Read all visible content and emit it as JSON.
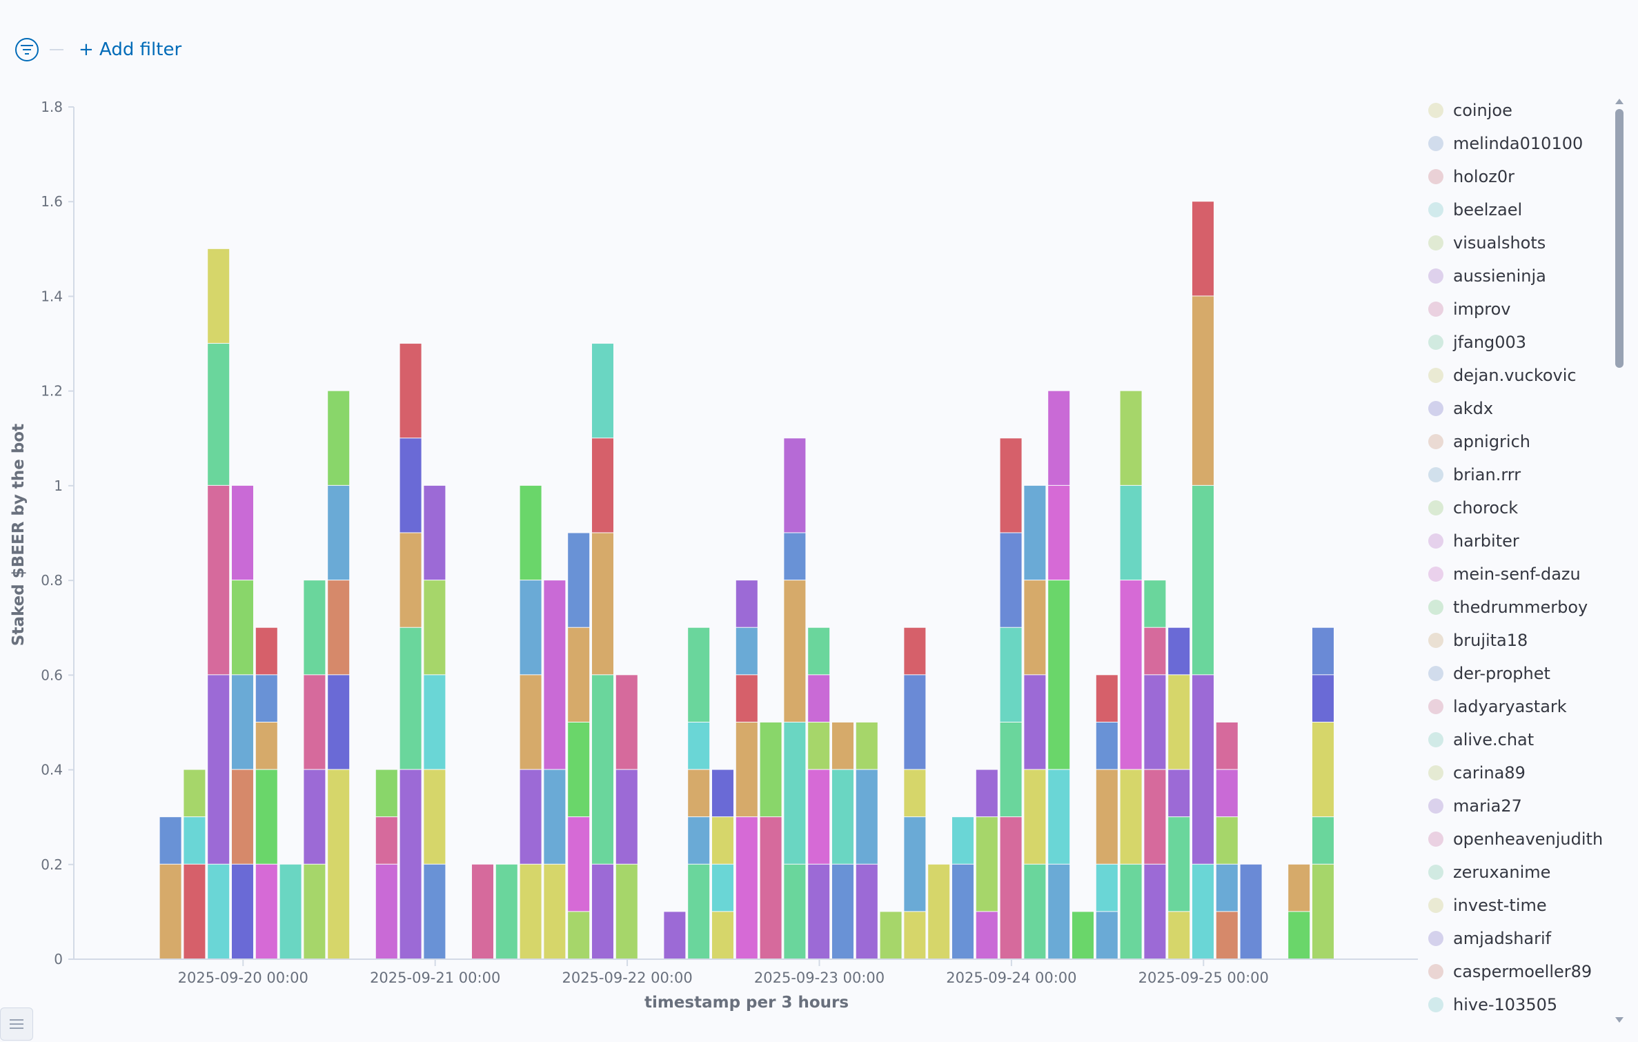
{
  "toolbar": {
    "add_filter_label": "+ Add filter"
  },
  "icons": {
    "filter": "filter-icon",
    "list": "list-icon"
  },
  "chart_data": {
    "type": "bar",
    "stacked": true,
    "xlabel": "timestamp per 3 hours",
    "ylabel": "Staked $BEER by the bot",
    "ylim": [
      0,
      1.8
    ],
    "yticks": [
      0,
      0.2,
      0.4,
      0.6,
      0.8,
      1,
      1.2,
      1.4,
      1.6,
      1.8
    ],
    "xtick_labels": [
      "2025-09-20 00:00",
      "2025-09-21 00:00",
      "2025-09-22 00:00",
      "2025-09-23 00:00",
      "2025-09-24 00:00",
      "2025-09-25 00:00"
    ],
    "bucket_hours": 3,
    "x_start": "2025-09-19 06:00",
    "bars": [
      {
        "t": "2025-09-19 12:00",
        "segs": [
          [
            0.2,
            "#d6aa6a"
          ],
          [
            0.1,
            "#6992d6"
          ]
        ]
      },
      {
        "t": "2025-09-19 15:00",
        "segs": [
          [
            0.2,
            "#d6606a"
          ],
          [
            0.1,
            "#6ad6d6"
          ],
          [
            0.1,
            "#a6d66a"
          ]
        ]
      },
      {
        "t": "2025-09-19 18:00",
        "segs": [
          [
            0.2,
            "#6ad6d6"
          ],
          [
            0.4,
            "#9c6ad6"
          ],
          [
            0.4,
            "#d66a9c"
          ],
          [
            0.3,
            "#6ad69c"
          ],
          [
            0.2,
            "#d6d66a"
          ]
        ]
      },
      {
        "t": "2025-09-19 21:00",
        "segs": [
          [
            0.2,
            "#6a6ad6"
          ],
          [
            0.2,
            "#d6896a"
          ],
          [
            0.2,
            "#6aaad6"
          ],
          [
            0.2,
            "#89d66a"
          ],
          [
            0.2,
            "#c96ad6"
          ]
        ]
      },
      {
        "t": "2025-09-20 00:00",
        "segs": [
          [
            0.2,
            "#d66ad6"
          ],
          [
            0.2,
            "#6ad66a"
          ],
          [
            0.1,
            "#d6aa6a"
          ],
          [
            0.1,
            "#6992d6"
          ],
          [
            0.1,
            "#d6606a"
          ]
        ]
      },
      {
        "t": "2025-09-20 03:00",
        "segs": [
          [
            0.2,
            "#6ad6c2"
          ]
        ]
      },
      {
        "t": "2025-09-20 06:00",
        "segs": [
          [
            0.2,
            "#a6d66a"
          ],
          [
            0.2,
            "#9c6ad6"
          ],
          [
            0.2,
            "#d66a9c"
          ],
          [
            0.2,
            "#6ad69c"
          ]
        ]
      },
      {
        "t": "2025-09-20 09:00",
        "segs": [
          [
            0.4,
            "#d6d66a"
          ],
          [
            0.2,
            "#6a6ad6"
          ],
          [
            0.2,
            "#d6896a"
          ],
          [
            0.2,
            "#6aaad6"
          ],
          [
            0.2,
            "#89d66a"
          ]
        ]
      },
      {
        "t": "2025-09-20 15:00",
        "segs": [
          [
            0.2,
            "#c96ad6"
          ],
          [
            0.1,
            "#d66a9c"
          ],
          [
            0.1,
            "#89d66a"
          ]
        ]
      },
      {
        "t": "2025-09-20 18:00",
        "segs": [
          [
            0.4,
            "#9c6ad6"
          ],
          [
            0.3,
            "#6ad69c"
          ],
          [
            0.2,
            "#d6aa6a"
          ],
          [
            0.2,
            "#6a6ad6"
          ],
          [
            0.2,
            "#d6606a"
          ]
        ]
      },
      {
        "t": "2025-09-20 21:00",
        "segs": [
          [
            0.2,
            "#6992d6"
          ],
          [
            0.2,
            "#d6d66a"
          ],
          [
            0.2,
            "#6ad6d6"
          ],
          [
            0.2,
            "#a6d66a"
          ],
          [
            0.2,
            "#9c6ad6"
          ]
        ]
      },
      {
        "t": "2025-09-21 03:00",
        "segs": [
          [
            0.2,
            "#d66a9c"
          ]
        ]
      },
      {
        "t": "2025-09-21 06:00",
        "segs": [
          [
            0.2,
            "#6ad69c"
          ]
        ]
      },
      {
        "t": "2025-09-21 09:00",
        "segs": [
          [
            0.2,
            "#d6d66a"
          ],
          [
            0.2,
            "#9c6ad6"
          ],
          [
            0.2,
            "#d6aa6a"
          ],
          [
            0.2,
            "#6aaad6"
          ],
          [
            0.2,
            "#6ad66a"
          ]
        ]
      },
      {
        "t": "2025-09-21 12:00",
        "segs": [
          [
            0.2,
            "#d6d66a"
          ],
          [
            0.2,
            "#6aaad6"
          ],
          [
            0.4,
            "#c96ad6"
          ]
        ]
      },
      {
        "t": "2025-09-21 15:00",
        "segs": [
          [
            0.1,
            "#a6d66a"
          ],
          [
            0.2,
            "#d66ad6"
          ],
          [
            0.2,
            "#6ad66a"
          ],
          [
            0.2,
            "#d6aa6a"
          ],
          [
            0.2,
            "#6992d6"
          ]
        ]
      },
      {
        "t": "2025-09-21 18:00",
        "segs": [
          [
            0.2,
            "#9c6ad6"
          ],
          [
            0.4,
            "#6ad69c"
          ],
          [
            0.3,
            "#d6aa6a"
          ],
          [
            0.2,
            "#d6606a"
          ],
          [
            0.2,
            "#6ad6c2"
          ]
        ]
      },
      {
        "t": "2025-09-21 21:00",
        "segs": [
          [
            0.2,
            "#a6d66a"
          ],
          [
            0.2,
            "#9c6ad6"
          ],
          [
            0.2,
            "#d66a9c"
          ]
        ]
      },
      {
        "t": "2025-09-22 03:00",
        "segs": [
          [
            0.1,
            "#9c6ad6"
          ]
        ]
      },
      {
        "t": "2025-09-22 06:00",
        "segs": [
          [
            0.2,
            "#6ad69c"
          ],
          [
            0.1,
            "#6aaad6"
          ],
          [
            0.1,
            "#d6aa6a"
          ],
          [
            0.1,
            "#6ad6d6"
          ],
          [
            0.2,
            "#6ad69c"
          ]
        ]
      },
      {
        "t": "2025-09-22 09:00",
        "segs": [
          [
            0.1,
            "#d6d66a"
          ],
          [
            0.1,
            "#6ad6d6"
          ],
          [
            0.1,
            "#d6d66a"
          ],
          [
            0.1,
            "#6a6ad6"
          ]
        ]
      },
      {
        "t": "2025-09-22 12:00",
        "segs": [
          [
            0.3,
            "#d66ad6"
          ],
          [
            0.2,
            "#d6aa6a"
          ],
          [
            0.1,
            "#d6606a"
          ],
          [
            0.1,
            "#6aaad6"
          ],
          [
            0.1,
            "#9c6ad6"
          ]
        ]
      },
      {
        "t": "2025-09-22 15:00",
        "segs": [
          [
            0.3,
            "#d66a9c"
          ],
          [
            0.2,
            "#89d66a"
          ]
        ]
      },
      {
        "t": "2025-09-22 18:00",
        "segs": [
          [
            0.2,
            "#6ad69c"
          ],
          [
            0.3,
            "#6ad6c2"
          ],
          [
            0.3,
            "#d6aa6a"
          ],
          [
            0.1,
            "#6992d6"
          ],
          [
            0.2,
            "#b66ad6"
          ]
        ]
      },
      {
        "t": "2025-09-22 21:00",
        "segs": [
          [
            0.2,
            "#9c6ad6"
          ],
          [
            0.2,
            "#d66ad6"
          ],
          [
            0.1,
            "#a6d66a"
          ],
          [
            0.1,
            "#c96ad6"
          ],
          [
            0.1,
            "#6ad69c"
          ]
        ]
      },
      {
        "t": "2025-09-23 00:00",
        "segs": [
          [
            0.2,
            "#6992d6"
          ],
          [
            0.2,
            "#6ad6c2"
          ],
          [
            0.1,
            "#d6aa6a"
          ]
        ]
      },
      {
        "t": "2025-09-23 03:00",
        "segs": [
          [
            0.2,
            "#9c6ad6"
          ],
          [
            0.2,
            "#6aaad6"
          ],
          [
            0.1,
            "#a6d66a"
          ]
        ]
      },
      {
        "t": "2025-09-23 06:00",
        "segs": [
          [
            0.1,
            "#a6d66a"
          ]
        ]
      },
      {
        "t": "2025-09-23 09:00",
        "segs": [
          [
            0.1,
            "#d6d66a"
          ],
          [
            0.2,
            "#6aaad6"
          ],
          [
            0.1,
            "#d6d66a"
          ],
          [
            0.2,
            "#6a8ad6"
          ],
          [
            0.1,
            "#d6606a"
          ]
        ]
      },
      {
        "t": "2025-09-23 12:00",
        "segs": [
          [
            0.2,
            "#d6d66a"
          ]
        ]
      },
      {
        "t": "2025-09-23 15:00",
        "segs": [
          [
            0.2,
            "#6992d6"
          ],
          [
            0.1,
            "#6ad6d6"
          ]
        ]
      },
      {
        "t": "2025-09-23 18:00",
        "segs": [
          [
            0.1,
            "#c96ad6"
          ],
          [
            0.2,
            "#a6d66a"
          ],
          [
            0.1,
            "#9c6ad6"
          ]
        ]
      },
      {
        "t": "2025-09-23 21:00",
        "segs": [
          [
            0.3,
            "#d66a9c"
          ],
          [
            0.2,
            "#6ad69c"
          ],
          [
            0.2,
            "#6ad6c2"
          ],
          [
            0.2,
            "#6a8ad6"
          ],
          [
            0.2,
            "#d6606a"
          ]
        ]
      },
      {
        "t": "2025-09-24 00:00",
        "segs": [
          [
            0.2,
            "#6ad69c"
          ],
          [
            0.2,
            "#d6d66a"
          ],
          [
            0.2,
            "#9c6ad6"
          ],
          [
            0.2,
            "#d6aa6a"
          ],
          [
            0.2,
            "#6aaad6"
          ]
        ]
      },
      {
        "t": "2025-09-24 03:00",
        "segs": [
          [
            0.2,
            "#6aaad6"
          ],
          [
            0.2,
            "#6ad6d6"
          ],
          [
            0.4,
            "#6ad66a"
          ],
          [
            0.2,
            "#d66ad6"
          ],
          [
            0.2,
            "#c96ad6"
          ]
        ]
      },
      {
        "t": "2025-09-24 06:00",
        "segs": [
          [
            0.1,
            "#6ad66a"
          ]
        ]
      },
      {
        "t": "2025-09-24 09:00",
        "segs": [
          [
            0.1,
            "#6aaad6"
          ],
          [
            0.1,
            "#6ad6d6"
          ],
          [
            0.2,
            "#d6aa6a"
          ],
          [
            0.1,
            "#6992d6"
          ],
          [
            0.1,
            "#d6606a"
          ]
        ]
      },
      {
        "t": "2025-09-24 12:00",
        "segs": [
          [
            0.2,
            "#6ad69c"
          ],
          [
            0.2,
            "#d6d66a"
          ],
          [
            0.4,
            "#d66ad6"
          ],
          [
            0.2,
            "#6ad6c2"
          ],
          [
            0.2,
            "#a6d66a"
          ]
        ]
      },
      {
        "t": "2025-09-24 15:00",
        "segs": [
          [
            0.2,
            "#9c6ad6"
          ],
          [
            0.2,
            "#d66a9c"
          ],
          [
            0.2,
            "#9c6ad6"
          ],
          [
            0.1,
            "#d66a9c"
          ],
          [
            0.1,
            "#6ad69c"
          ]
        ]
      },
      {
        "t": "2025-09-24 18:00",
        "segs": [
          [
            0.1,
            "#d6d66a"
          ],
          [
            0.2,
            "#6ad69c"
          ],
          [
            0.1,
            "#9c6ad6"
          ],
          [
            0.2,
            "#d6d66a"
          ],
          [
            0.1,
            "#6a6ad6"
          ]
        ]
      },
      {
        "t": "2025-09-24 21:00",
        "segs": [
          [
            0.2,
            "#6ad6d6"
          ],
          [
            0.4,
            "#9c6ad6"
          ],
          [
            0.4,
            "#6ad69c"
          ],
          [
            0.4,
            "#d6aa6a"
          ],
          [
            0.2,
            "#d6606a"
          ]
        ]
      },
      {
        "t": "2025-09-25 00:00",
        "segs": [
          [
            0.1,
            "#d6896a"
          ],
          [
            0.1,
            "#6aaad6"
          ],
          [
            0.1,
            "#a6d66a"
          ],
          [
            0.1,
            "#c96ad6"
          ],
          [
            0.1,
            "#d66a9c"
          ]
        ]
      },
      {
        "t": "2025-09-25 03:00",
        "segs": [
          [
            0.2,
            "#6a8ad6"
          ]
        ]
      },
      {
        "t": "2025-09-25 09:00",
        "segs": [
          [
            0.1,
            "#6ad66a"
          ],
          [
            0.1,
            "#d6aa6a"
          ]
        ]
      },
      {
        "t": "2025-09-25 12:00",
        "segs": [
          [
            0.2,
            "#a6d66a"
          ],
          [
            0.1,
            "#6ad69c"
          ],
          [
            0.2,
            "#d6d66a"
          ],
          [
            0.1,
            "#6a6ad6"
          ],
          [
            0.1,
            "#6a8ad6"
          ]
        ]
      }
    ],
    "legend": [
      {
        "name": "coinjoe",
        "color": "#d6d6a0"
      },
      {
        "name": "melinda010100",
        "color": "#a0b8d6"
      },
      {
        "name": "holoz0r",
        "color": "#d6a0a6"
      },
      {
        "name": "beelzael",
        "color": "#a0d6d6"
      },
      {
        "name": "visualshots",
        "color": "#c2d6a0"
      },
      {
        "name": "aussieninja",
        "color": "#bca0d6"
      },
      {
        "name": "improv",
        "color": "#d6a0bc"
      },
      {
        "name": "jfang003",
        "color": "#a0d6bc"
      },
      {
        "name": "dejan.vuckovic",
        "color": "#d6d6a0"
      },
      {
        "name": "akdx",
        "color": "#a0a0d6"
      },
      {
        "name": "apnigrich",
        "color": "#d6b4a0"
      },
      {
        "name": "brian.rrr",
        "color": "#a0c2d6"
      },
      {
        "name": "chorock",
        "color": "#b4d6a0"
      },
      {
        "name": "harbiter",
        "color": "#cca0d6"
      },
      {
        "name": "mein-senf-dazu",
        "color": "#d6a0d6"
      },
      {
        "name": "thedrummerboy",
        "color": "#a0d6a8"
      },
      {
        "name": "brujita18",
        "color": "#d6c2a0"
      },
      {
        "name": "der-prophet",
        "color": "#a0b8d6"
      },
      {
        "name": "ladyaryastark",
        "color": "#d6a0b4"
      },
      {
        "name": "alive.chat",
        "color": "#a0d6cc"
      },
      {
        "name": "carina89",
        "color": "#ccd6a0"
      },
      {
        "name": "maria27",
        "color": "#b4a0d6"
      },
      {
        "name": "openheavenjudith",
        "color": "#d6a0c2"
      },
      {
        "name": "zeruxanime",
        "color": "#a0d6c2"
      },
      {
        "name": "invest-time",
        "color": "#d6d6a0"
      },
      {
        "name": "amjadsharif",
        "color": "#a6a0d6"
      },
      {
        "name": "caspermoeller89",
        "color": "#d6a8a0"
      },
      {
        "name": "hive-103505",
        "color": "#a0d6d6"
      }
    ]
  }
}
